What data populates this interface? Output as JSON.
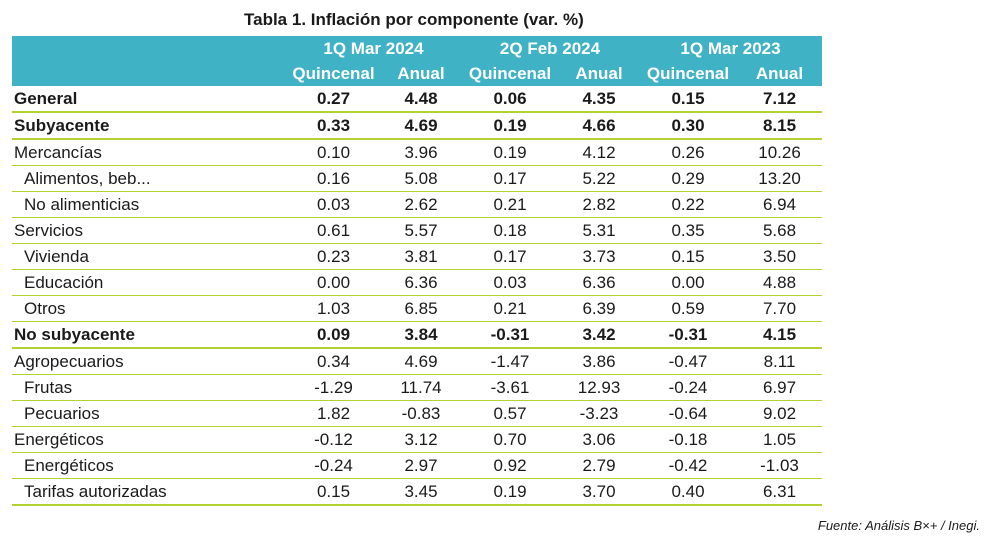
{
  "title": "Tabla 1. Inflación por componente (var. %)",
  "periods": [
    "1Q Mar 2024",
    "2Q Feb 2024",
    "1Q Mar 2023"
  ],
  "subheaders": [
    "Quincenal",
    "Anual",
    "Quincenal",
    "Anual",
    "Quincenal",
    "Anual"
  ],
  "colors": {
    "header_bg": "#3fb2c6",
    "rule": "#b2d233"
  },
  "rows": [
    {
      "label": "General",
      "values": [
        "0.27",
        "4.48",
        "0.06",
        "4.35",
        "0.15",
        "7.12"
      ]
    },
    {
      "label": "Subyacente",
      "values": [
        "0.33",
        "4.69",
        "0.19",
        "4.66",
        "0.30",
        "8.15"
      ]
    },
    {
      "label": "Mercancías",
      "values": [
        "0.10",
        "3.96",
        "0.19",
        "4.12",
        "0.26",
        "10.26"
      ]
    },
    {
      "label": "Alimentos, beb...",
      "values": [
        "0.16",
        "5.08",
        "0.17",
        "5.22",
        "0.29",
        "13.20"
      ]
    },
    {
      "label": "No alimenticias",
      "values": [
        "0.03",
        "2.62",
        "0.21",
        "2.82",
        "0.22",
        "6.94"
      ]
    },
    {
      "label": "Servicios",
      "values": [
        "0.61",
        "5.57",
        "0.18",
        "5.31",
        "0.35",
        "5.68"
      ]
    },
    {
      "label": "Vivienda",
      "values": [
        "0.23",
        "3.81",
        "0.17",
        "3.73",
        "0.15",
        "3.50"
      ]
    },
    {
      "label": "Educación",
      "values": [
        "0.00",
        "6.36",
        "0.03",
        "6.36",
        "0.00",
        "4.88"
      ]
    },
    {
      "label": "Otros",
      "values": [
        "1.03",
        "6.85",
        "0.21",
        "6.39",
        "0.59",
        "7.70"
      ]
    },
    {
      "label": "No subyacente",
      "values": [
        "0.09",
        "3.84",
        "-0.31",
        "3.42",
        "-0.31",
        "4.15"
      ]
    },
    {
      "label": "Agropecuarios",
      "values": [
        "0.34",
        "4.69",
        "-1.47",
        "3.86",
        "-0.47",
        "8.11"
      ]
    },
    {
      "label": "Frutas",
      "values": [
        "-1.29",
        "11.74",
        "-3.61",
        "12.93",
        "-0.24",
        "6.97"
      ]
    },
    {
      "label": "Pecuarios",
      "values": [
        "1.82",
        "-0.83",
        "0.57",
        "-3.23",
        "-0.64",
        "9.02"
      ]
    },
    {
      "label": "Energéticos",
      "values": [
        "-0.12",
        "3.12",
        "0.70",
        "3.06",
        "-0.18",
        "1.05"
      ]
    },
    {
      "label": "Energéticos",
      "values": [
        "-0.24",
        "2.97",
        "0.92",
        "2.79",
        "-0.42",
        "-1.03"
      ]
    },
    {
      "label": "Tarifas autorizadas",
      "values": [
        "0.15",
        "3.45",
        "0.19",
        "3.70",
        "0.40",
        "6.31"
      ]
    }
  ],
  "source": "Fuente: Análisis B×+ /  Inegi."
}
